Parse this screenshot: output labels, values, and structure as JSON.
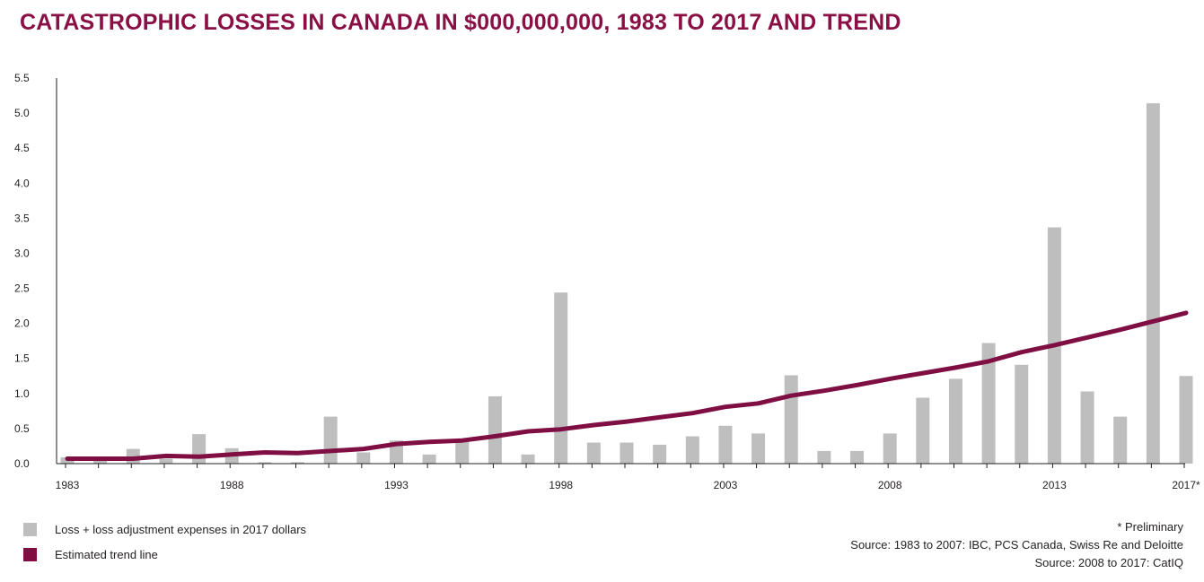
{
  "colors": {
    "title": "#8a0f45",
    "bar": "#bebebe",
    "trend": "#7f0f43",
    "axis": "#231f20"
  },
  "chart_data": {
    "type": "bar",
    "title": "CATASTROPHIC LOSSES IN CANADA IN $000,000,000, 1983 TO 2017 AND TREND",
    "xlabel": "",
    "ylabel": "",
    "ylim": [
      0,
      5.5
    ],
    "y_ticks": [
      "0.0",
      "0.5",
      "1.0",
      "1.5",
      "2.0",
      "2.5",
      "3.0",
      "3.5",
      "4.0",
      "4.5",
      "5.0",
      "5.5"
    ],
    "x_tick_labels": [
      {
        "year": 1983,
        "label": "1983"
      },
      {
        "year": 1988,
        "label": "1988"
      },
      {
        "year": 1993,
        "label": "1993"
      },
      {
        "year": 1998,
        "label": "1998"
      },
      {
        "year": 2003,
        "label": "2003"
      },
      {
        "year": 2008,
        "label": "2008"
      },
      {
        "year": 2013,
        "label": "2013"
      },
      {
        "year": 2017,
        "label": "2017*"
      }
    ],
    "categories": [
      1983,
      1984,
      1985,
      1986,
      1987,
      1988,
      1989,
      1990,
      1991,
      1992,
      1993,
      1994,
      1995,
      1996,
      1997,
      1998,
      1999,
      2000,
      2001,
      2002,
      2003,
      2004,
      2005,
      2006,
      2007,
      2008,
      2009,
      2010,
      2011,
      2012,
      2013,
      2014,
      2015,
      2016,
      2017
    ],
    "series": [
      {
        "name": "Loss + loss adjustment expenses in 2017 dollars",
        "type": "bar",
        "values": [
          0.09,
          0.04,
          0.21,
          0.07,
          0.42,
          0.22,
          0.02,
          0.02,
          0.67,
          0.16,
          0.33,
          0.13,
          0.33,
          0.96,
          0.13,
          2.44,
          0.3,
          0.3,
          0.27,
          0.39,
          0.54,
          0.43,
          1.26,
          0.18,
          0.18,
          0.43,
          0.94,
          1.21,
          1.72,
          1.41,
          3.37,
          1.03,
          0.67,
          5.14,
          1.25
        ]
      },
      {
        "name": "Estimated trend line",
        "type": "line",
        "values": [
          0.07,
          0.07,
          0.07,
          0.11,
          0.1,
          0.13,
          0.16,
          0.15,
          0.18,
          0.21,
          0.28,
          0.31,
          0.33,
          0.39,
          0.46,
          0.49,
          0.55,
          0.6,
          0.66,
          0.72,
          0.81,
          0.86,
          0.97,
          1.04,
          1.12,
          1.21,
          1.29,
          1.37,
          1.46,
          1.59,
          1.69,
          1.8,
          1.91,
          2.03,
          2.15
        ]
      }
    ],
    "legend_position": "bottom-left",
    "grid": false
  },
  "legend": {
    "bar_label": "Loss + loss adjustment expenses in 2017 dollars",
    "trend_label": "Estimated trend line"
  },
  "notes": {
    "preliminary": "* Preliminary",
    "source1": "Source: 1983 to 2007: IBC, PCS Canada, Swiss Re and Deloitte",
    "source2": "Source: 2008 to 2017: CatIQ"
  }
}
